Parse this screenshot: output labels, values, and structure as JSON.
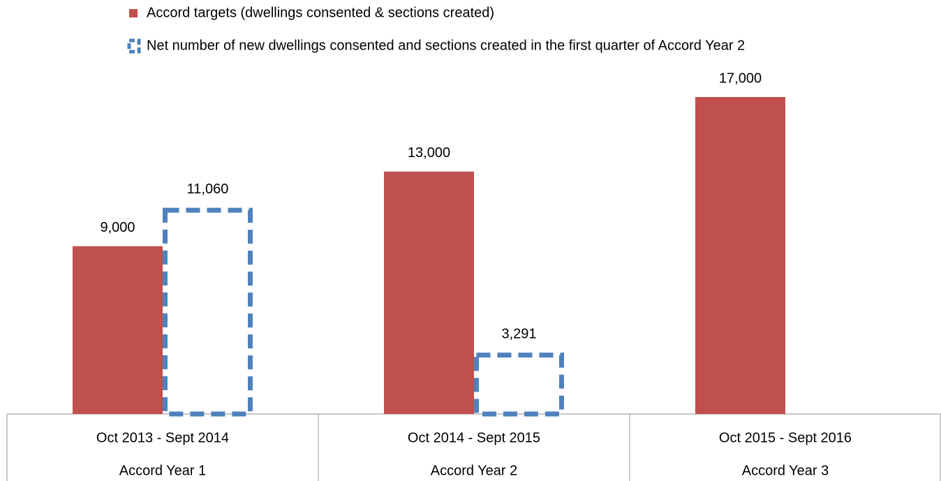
{
  "chart_data": {
    "type": "bar",
    "categories": [
      "Oct 2013 - Sept 2014",
      "Oct 2014 - Sept 2015",
      "Oct 2015 - Sept 2016"
    ],
    "category_groups": [
      "Accord Year 1",
      "Accord Year 2",
      "Accord Year 3"
    ],
    "series": [
      {
        "name": "Accord targets (dwellings consented & sections created)",
        "color": "#c0504d",
        "style": "solid",
        "values": [
          9000,
          13000,
          17000
        ],
        "value_labels": [
          "9,000",
          "13,000",
          "17,000"
        ]
      },
      {
        "name": "Net number of new dwellings consented and sections created in the first quarter of Accord Year 2",
        "color": "#4f81bd",
        "style": "dashed",
        "values": [
          11060,
          3291,
          null
        ],
        "value_labels": [
          "11,060",
          "3,291",
          null
        ]
      }
    ],
    "ylim": [
      0,
      17000
    ],
    "legend": "top"
  }
}
